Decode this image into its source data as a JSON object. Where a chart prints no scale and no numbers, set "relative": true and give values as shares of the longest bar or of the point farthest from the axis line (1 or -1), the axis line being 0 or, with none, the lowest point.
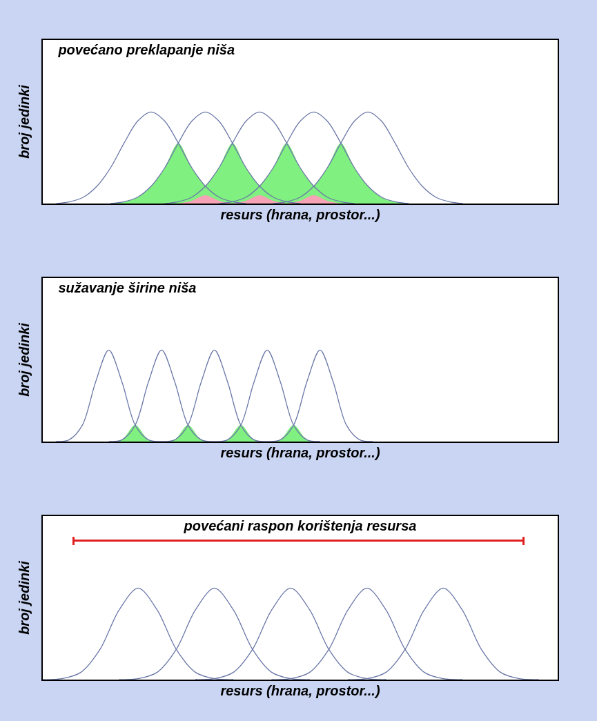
{
  "chart_data": [
    {
      "type": "line",
      "relative": true,
      "title": "povećano preklapanje niša",
      "xlabel": "resurs (hrana, prostor...)",
      "ylabel": "broj jedinki",
      "tick_labels": false,
      "legend": false,
      "categories": [
        null,
        null,
        null,
        null,
        null,
        null,
        null,
        null,
        null,
        null,
        null,
        null,
        null,
        null,
        null,
        null,
        null,
        null,
        null,
        null,
        null,
        null,
        null,
        null,
        null,
        null,
        null,
        null,
        null,
        null,
        null,
        null,
        null,
        null,
        null,
        null,
        null,
        null,
        null
      ],
      "series": [
        {
          "type": "area",
          "color": "#80f080",
          "values": [
            null,
            null,
            null,
            null,
            null,
            0,
            0.02,
            0.07,
            0.19,
            0.39,
            0.66,
            0.39,
            0.19,
            null,
            null,
            null,
            null,
            null,
            null,
            null,
            null,
            null,
            null,
            null,
            null,
            null,
            null,
            null,
            null,
            null,
            null,
            null,
            null,
            null,
            null,
            null,
            null,
            null,
            null
          ]
        },
        {
          "type": "area",
          "color": "#80f080",
          "values": [
            null,
            null,
            null,
            null,
            null,
            null,
            null,
            null,
            null,
            0,
            0.02,
            0.07,
            0.19,
            0.39,
            0.66,
            0.39,
            0.19,
            null,
            null,
            null,
            null,
            null,
            null,
            null,
            null,
            null,
            null,
            null,
            null,
            null,
            null,
            null,
            null,
            null,
            null,
            null,
            null,
            null,
            null
          ]
        },
        {
          "type": "area",
          "color": "#80f080",
          "values": [
            null,
            null,
            null,
            null,
            null,
            null,
            null,
            null,
            null,
            null,
            null,
            null,
            null,
            0,
            0.02,
            0.07,
            0.19,
            0.39,
            0.66,
            0.39,
            0.19,
            null,
            null,
            null,
            null,
            null,
            null,
            null,
            null,
            null,
            null,
            null,
            null,
            null,
            null,
            null,
            null,
            null,
            null
          ]
        },
        {
          "type": "area",
          "color": "#80f080",
          "values": [
            null,
            null,
            null,
            null,
            null,
            null,
            null,
            null,
            null,
            null,
            null,
            null,
            null,
            null,
            null,
            null,
            null,
            0,
            0.02,
            0.07,
            0.19,
            0.39,
            0.66,
            0.39,
            0.19,
            0.07,
            0.02,
            0,
            null,
            null,
            null,
            null,
            null,
            null,
            null,
            null,
            null,
            null,
            null
          ]
        },
        {
          "type": "area",
          "color": "#f5a3b5",
          "values": [
            null,
            null,
            null,
            null,
            null,
            null,
            null,
            null,
            null,
            null,
            0,
            0.03,
            0.09,
            0.03,
            0,
            null,
            null,
            null,
            null,
            null,
            null,
            null,
            null,
            null,
            null,
            null,
            null,
            null,
            null,
            null,
            null,
            null,
            null,
            null,
            null,
            null,
            null,
            null,
            null
          ]
        },
        {
          "type": "area",
          "color": "#f5a3b5",
          "values": [
            null,
            null,
            null,
            null,
            null,
            null,
            null,
            null,
            null,
            null,
            null,
            null,
            null,
            null,
            0,
            0.03,
            0.09,
            0.03,
            0,
            null,
            null,
            null,
            null,
            null,
            null,
            null,
            null,
            null,
            null,
            null,
            null,
            null,
            null,
            null,
            null,
            null,
            null,
            null,
            null
          ]
        },
        {
          "type": "area",
          "color": "#f5a3b5",
          "values": [
            null,
            null,
            null,
            null,
            null,
            null,
            null,
            null,
            null,
            null,
            null,
            null,
            null,
            null,
            null,
            null,
            null,
            null,
            0,
            0.03,
            0.09,
            0.03,
            0,
            null,
            null,
            null,
            null,
            null,
            null,
            null,
            null,
            null,
            null,
            null,
            null,
            null,
            null,
            null,
            null
          ]
        },
        {
          "color": "#6b78a8",
          "values": [
            null,
            0,
            0.02,
            0.07,
            0.19,
            0.39,
            0.66,
            0.9,
            1,
            0.9,
            0.66,
            0.39,
            0.19,
            0.07,
            0.02,
            0,
            null,
            null,
            null,
            null,
            null,
            null,
            null,
            null,
            null,
            null,
            null,
            null,
            null,
            null,
            null,
            null,
            null,
            null,
            null,
            null,
            null,
            null,
            null
          ]
        },
        {
          "color": "#6b78a8",
          "values": [
            null,
            null,
            null,
            null,
            null,
            0,
            0.02,
            0.07,
            0.19,
            0.39,
            0.66,
            0.9,
            1,
            0.9,
            0.66,
            0.39,
            0.19,
            0.07,
            0.02,
            0,
            null,
            null,
            null,
            null,
            null,
            null,
            null,
            null,
            null,
            null,
            null,
            null,
            null,
            null,
            null,
            null,
            null,
            null,
            null
          ]
        },
        {
          "color": "#6b78a8",
          "values": [
            null,
            null,
            null,
            null,
            null,
            null,
            null,
            null,
            null,
            0,
            0.02,
            0.07,
            0.19,
            0.39,
            0.66,
            0.9,
            1,
            0.9,
            0.66,
            0.39,
            0.19,
            0.07,
            0.02,
            0,
            null,
            null,
            null,
            null,
            null,
            null,
            null,
            null,
            null,
            null,
            null,
            null,
            null,
            null,
            null
          ]
        },
        {
          "color": "#6b78a8",
          "values": [
            null,
            null,
            null,
            null,
            null,
            null,
            null,
            null,
            null,
            null,
            null,
            null,
            null,
            0,
            0.02,
            0.07,
            0.19,
            0.39,
            0.66,
            0.9,
            1,
            0.9,
            0.66,
            0.39,
            0.19,
            0.07,
            0.02,
            0,
            null,
            null,
            null,
            null,
            null,
            null,
            null,
            null,
            null,
            null,
            null
          ]
        },
        {
          "color": "#6b78a8",
          "values": [
            null,
            null,
            null,
            null,
            null,
            null,
            null,
            null,
            null,
            null,
            null,
            null,
            null,
            null,
            null,
            null,
            null,
            0,
            0.02,
            0.07,
            0.19,
            0.39,
            0.66,
            0.9,
            1,
            0.9,
            0.66,
            0.39,
            0.19,
            0.07,
            0.02,
            0,
            null,
            null,
            null,
            null,
            null,
            null,
            null
          ]
        }
      ]
    },
    {
      "type": "line",
      "relative": true,
      "title": "sužavanje širine niša",
      "xlabel": "resurs (hrana, prostor...)",
      "ylabel": "broj jedinki",
      "tick_labels": false,
      "legend": false,
      "categories": [
        null,
        null,
        null,
        null,
        null,
        null,
        null,
        null,
        null,
        null,
        null,
        null,
        null,
        null,
        null,
        null,
        null,
        null,
        null,
        null,
        null,
        null,
        null,
        null,
        null,
        null,
        null,
        null,
        null,
        null,
        null,
        null,
        null,
        null,
        null,
        null,
        null,
        null,
        null,
        null
      ],
      "series": [
        {
          "type": "area",
          "color": "#80f080",
          "values": [
            null,
            null,
            null,
            null,
            null,
            0,
            0.02,
            0.18,
            0.02,
            0,
            null,
            null,
            null,
            null,
            null,
            null,
            null,
            null,
            null,
            null,
            null,
            null,
            null,
            null,
            null,
            null,
            null,
            null,
            null,
            null,
            null,
            null,
            null,
            null,
            null,
            null,
            null,
            null,
            null,
            null
          ]
        },
        {
          "type": "area",
          "color": "#80f080",
          "values": [
            null,
            null,
            null,
            null,
            null,
            null,
            null,
            null,
            null,
            0,
            0.02,
            0.18,
            0.02,
            0,
            null,
            null,
            null,
            null,
            null,
            null,
            null,
            null,
            null,
            null,
            null,
            null,
            null,
            null,
            null,
            null,
            null,
            null,
            null,
            null,
            null,
            null,
            null,
            null,
            null,
            null
          ]
        },
        {
          "type": "area",
          "color": "#80f080",
          "values": [
            null,
            null,
            null,
            null,
            null,
            null,
            null,
            null,
            null,
            null,
            null,
            null,
            null,
            0,
            0.02,
            0.18,
            0.02,
            0,
            null,
            null,
            null,
            null,
            null,
            null,
            null,
            null,
            null,
            null,
            null,
            null,
            null,
            null,
            null,
            null,
            null,
            null,
            null,
            null,
            null,
            null
          ]
        },
        {
          "type": "area",
          "color": "#80f080",
          "values": [
            null,
            null,
            null,
            null,
            null,
            null,
            null,
            null,
            null,
            null,
            null,
            null,
            null,
            null,
            null,
            null,
            null,
            0,
            0.02,
            0.18,
            0.02,
            0,
            null,
            null,
            null,
            null,
            null,
            null,
            null,
            null,
            null,
            null,
            null,
            null,
            null,
            null,
            null,
            null,
            null,
            null
          ]
        },
        {
          "color": "#6b78a8",
          "values": [
            null,
            0,
            0.02,
            0.18,
            0.65,
            1,
            0.65,
            0.18,
            0.02,
            0,
            null,
            null,
            null,
            null,
            null,
            null,
            null,
            null,
            null,
            null,
            null,
            null,
            null,
            null,
            null,
            null,
            null,
            null,
            null,
            null,
            null,
            null,
            null,
            null,
            null,
            null,
            null,
            null,
            null,
            null
          ]
        },
        {
          "color": "#6b78a8",
          "values": [
            null,
            null,
            null,
            null,
            null,
            0,
            0.02,
            0.18,
            0.65,
            1,
            0.65,
            0.18,
            0.02,
            0,
            null,
            null,
            null,
            null,
            null,
            null,
            null,
            null,
            null,
            null,
            null,
            null,
            null,
            null,
            null,
            null,
            null,
            null,
            null,
            null,
            null,
            null,
            null,
            null,
            null,
            null
          ]
        },
        {
          "color": "#6b78a8",
          "values": [
            null,
            null,
            null,
            null,
            null,
            null,
            null,
            null,
            null,
            0,
            0.02,
            0.18,
            0.65,
            1,
            0.65,
            0.18,
            0.02,
            0,
            null,
            null,
            null,
            null,
            null,
            null,
            null,
            null,
            null,
            null,
            null,
            null,
            null,
            null,
            null,
            null,
            null,
            null,
            null,
            null,
            null,
            null
          ]
        },
        {
          "color": "#6b78a8",
          "values": [
            null,
            null,
            null,
            null,
            null,
            null,
            null,
            null,
            null,
            null,
            null,
            null,
            null,
            0,
            0.02,
            0.18,
            0.65,
            1,
            0.65,
            0.18,
            0.02,
            0,
            null,
            null,
            null,
            null,
            null,
            null,
            null,
            null,
            null,
            null,
            null,
            null,
            null,
            null,
            null,
            null,
            null,
            null
          ]
        },
        {
          "color": "#6b78a8",
          "values": [
            null,
            null,
            null,
            null,
            null,
            null,
            null,
            null,
            null,
            null,
            null,
            null,
            null,
            null,
            null,
            null,
            null,
            0,
            0.02,
            0.18,
            0.65,
            1,
            0.65,
            0.18,
            0.02,
            0,
            null,
            null,
            null,
            null,
            null,
            null,
            null,
            null,
            null,
            null,
            null,
            null,
            null,
            null
          ]
        }
      ]
    },
    {
      "type": "line",
      "relative": true,
      "title": "povećani raspon korištenja resursa",
      "xlabel": "resurs (hrana, prostor...)",
      "ylabel": "broj jedinki",
      "tick_labels": false,
      "legend": false,
      "categories": [
        null,
        null,
        null,
        null,
        null,
        null,
        null,
        null,
        null,
        null,
        null,
        null,
        null,
        null,
        null,
        null,
        null,
        null,
        null,
        null,
        null,
        null,
        null,
        null,
        null,
        null,
        null,
        null
      ],
      "series": [
        {
          "color": "#6b78a8",
          "values": [
            0,
            0.01,
            0.08,
            0.33,
            0.76,
            1,
            0.76,
            0.33,
            0.08,
            0.01,
            0,
            null,
            null,
            null,
            null,
            null,
            null,
            null,
            null,
            null,
            null,
            null,
            null,
            null,
            null,
            null,
            null,
            null
          ]
        },
        {
          "color": "#6b78a8",
          "values": [
            null,
            null,
            null,
            null,
            0,
            0.01,
            0.08,
            0.33,
            0.76,
            1,
            0.76,
            0.33,
            0.08,
            0.01,
            0,
            null,
            null,
            null,
            null,
            null,
            null,
            null,
            null,
            null,
            null,
            null,
            null,
            null
          ]
        },
        {
          "color": "#6b78a8",
          "values": [
            null,
            null,
            null,
            null,
            null,
            null,
            null,
            null,
            0,
            0.01,
            0.08,
            0.33,
            0.76,
            1,
            0.76,
            0.33,
            0.08,
            0.01,
            0,
            null,
            null,
            null,
            null,
            null,
            null,
            null,
            null,
            null
          ]
        },
        {
          "color": "#6b78a8",
          "values": [
            null,
            null,
            null,
            null,
            null,
            null,
            null,
            null,
            null,
            null,
            null,
            null,
            0,
            0.01,
            0.08,
            0.33,
            0.76,
            1,
            0.76,
            0.33,
            0.08,
            0.01,
            0,
            null,
            null,
            null,
            null,
            null
          ]
        },
        {
          "color": "#6b78a8",
          "values": [
            null,
            null,
            null,
            null,
            null,
            null,
            null,
            null,
            null,
            null,
            null,
            null,
            null,
            null,
            null,
            null,
            0,
            0.01,
            0.08,
            0.33,
            0.76,
            1,
            0.76,
            0.33,
            0.08,
            0.01,
            0,
            null
          ]
        }
      ]
    }
  ]
}
